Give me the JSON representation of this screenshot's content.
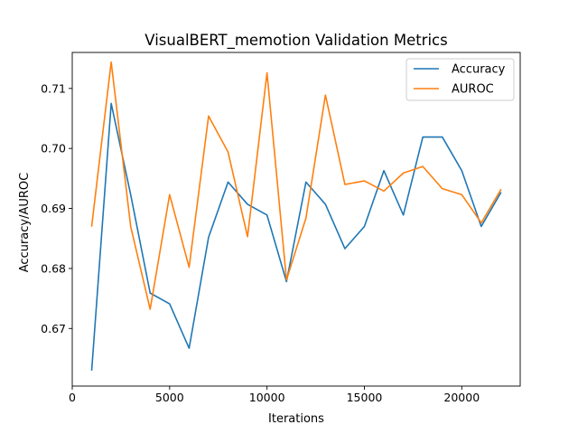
{
  "chart_data": {
    "type": "line",
    "title": "VisualBERT_memotion Validation Metrics",
    "xlabel": "Iterations",
    "ylabel": "Accuracy/AUROC",
    "xlim": [
      0,
      23000
    ],
    "ylim": [
      0.6604,
      0.716
    ],
    "x_ticks": [
      0,
      5000,
      10000,
      15000,
      20000
    ],
    "x_tick_labels": [
      "0",
      "5000",
      "10000",
      "15000",
      "20000"
    ],
    "y_ticks": [
      0.67,
      0.68,
      0.69,
      0.7,
      0.71
    ],
    "y_tick_labels": [
      "0.67",
      "0.68",
      "0.69",
      "0.70",
      "0.71"
    ],
    "grid": false,
    "legend_position": "top-right",
    "x": [
      1000,
      2000,
      3000,
      4000,
      5000,
      6000,
      7000,
      8000,
      9000,
      10000,
      11000,
      12000,
      13000,
      14000,
      15000,
      16000,
      17000,
      18000,
      19000,
      20000,
      21000,
      22000
    ],
    "series": [
      {
        "name": "Accuracy",
        "color": "#1f77b4",
        "values": [
          0.6631,
          0.7075,
          0.6923,
          0.6759,
          0.6741,
          0.6667,
          0.6852,
          0.6944,
          0.6907,
          0.6889,
          0.6778,
          0.6944,
          0.6907,
          0.6833,
          0.687,
          0.6963,
          0.6889,
          0.7019,
          0.7019,
          0.6963,
          0.687,
          0.6926
        ]
      },
      {
        "name": "AUROC",
        "color": "#ff7f0e",
        "values": [
          0.6871,
          0.7144,
          0.687,
          0.6732,
          0.6923,
          0.6802,
          0.7054,
          0.6994,
          0.6853,
          0.7126,
          0.6781,
          0.6884,
          0.7089,
          0.694,
          0.6946,
          0.6929,
          0.6959,
          0.697,
          0.6933,
          0.6923,
          0.6876,
          0.6931
        ]
      }
    ]
  }
}
